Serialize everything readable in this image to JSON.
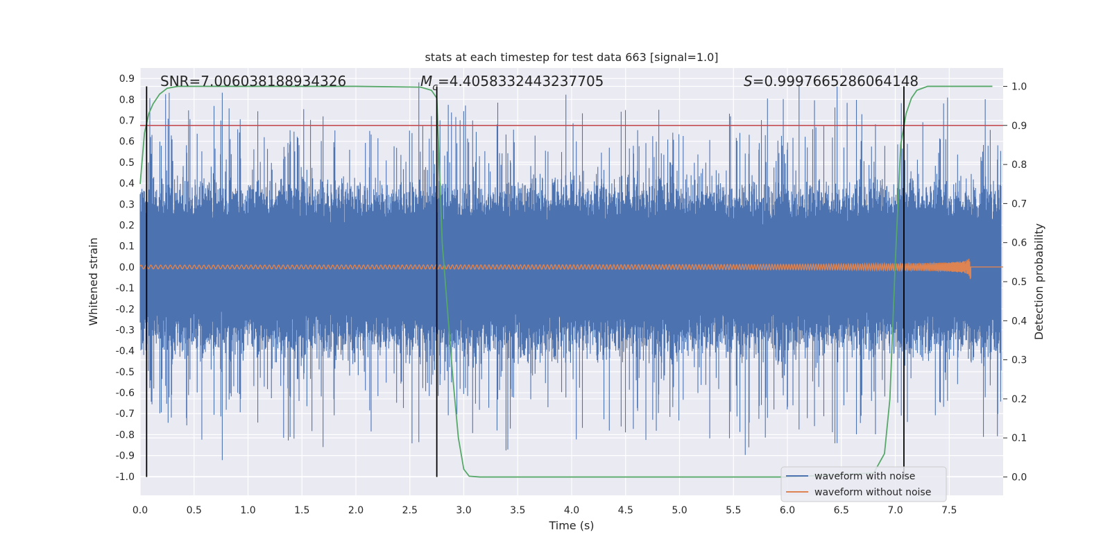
{
  "chart_data": {
    "type": "line",
    "title": "stats at each timestep for test data 663 [signal=1.0]",
    "xlabel": "Time (s)",
    "ylabel": "Whitened strain",
    "y2label": "Detection probability",
    "xlim": [
      0.0,
      8.0
    ],
    "ylim": [
      -1.09,
      0.95
    ],
    "y2lim": [
      -0.047,
      1.047
    ],
    "grid": true,
    "legend_position": "lower-right",
    "xticks": [
      "0.0",
      "0.5",
      "1.0",
      "1.5",
      "2.0",
      "2.5",
      "3.0",
      "3.5",
      "4.0",
      "4.5",
      "5.0",
      "5.5",
      "6.0",
      "6.5",
      "7.0",
      "7.5"
    ],
    "yticks": [
      "0.9",
      "0.8",
      "0.7",
      "0.6",
      "0.5",
      "0.4",
      "0.3",
      "0.2",
      "0.1",
      "0.0",
      "-0.1",
      "-0.2",
      "-0.3",
      "-0.4",
      "-0.5",
      "-0.6",
      "-0.7",
      "-0.8",
      "-0.9",
      "-1.0"
    ],
    "y2ticks": [
      "1.0",
      "0.9",
      "0.8",
      "0.7",
      "0.6",
      "0.5",
      "0.4",
      "0.3",
      "0.2",
      "0.1",
      "0.0"
    ],
    "annotations": {
      "snr": "SNR=7.006038188934326",
      "mc_symbol": "M",
      "mc_sub": "c",
      "mc_value": "=4.4058332443237705",
      "s_symbol": "S",
      "s_value": "=0.9997665286064148"
    },
    "series": [
      {
        "name": "waveform with noise",
        "color": "#4c72b0",
        "envelope_typical": 0.45,
        "envelope_max": 0.9
      },
      {
        "name": "waveform without noise",
        "color": "#dd8452",
        "chirp_end_time": 7.7,
        "peak_amplitude": 0.15
      },
      {
        "color": "#55a868",
        "axis": "right",
        "x": [
          0.0,
          0.04,
          0.08,
          0.12,
          0.18,
          0.25,
          0.35,
          0.5,
          1.0,
          2.0,
          2.6,
          2.7,
          2.75,
          2.8,
          2.9,
          2.95,
          3.0,
          3.05,
          3.15,
          3.3,
          4.0,
          5.0,
          6.0,
          6.8,
          6.9,
          6.95,
          7.0,
          7.05,
          7.1,
          7.15,
          7.2,
          7.3,
          7.5,
          7.9
        ],
        "y": [
          0.75,
          0.88,
          0.93,
          0.955,
          0.98,
          0.995,
          1.0,
          1.0,
          1.0,
          1.0,
          0.998,
          0.99,
          0.97,
          0.6,
          0.25,
          0.1,
          0.02,
          0.002,
          0.0,
          0.0,
          0.0,
          0.0,
          0.0,
          0.01,
          0.06,
          0.2,
          0.55,
          0.85,
          0.93,
          0.97,
          0.99,
          1.0,
          1.0,
          1.0
        ]
      },
      {
        "color": "#c44e52",
        "axis": "right",
        "threshold": 0.9
      }
    ],
    "event_markers_s": [
      0.06,
      2.75,
      7.08
    ],
    "marker_color": "#000000"
  }
}
